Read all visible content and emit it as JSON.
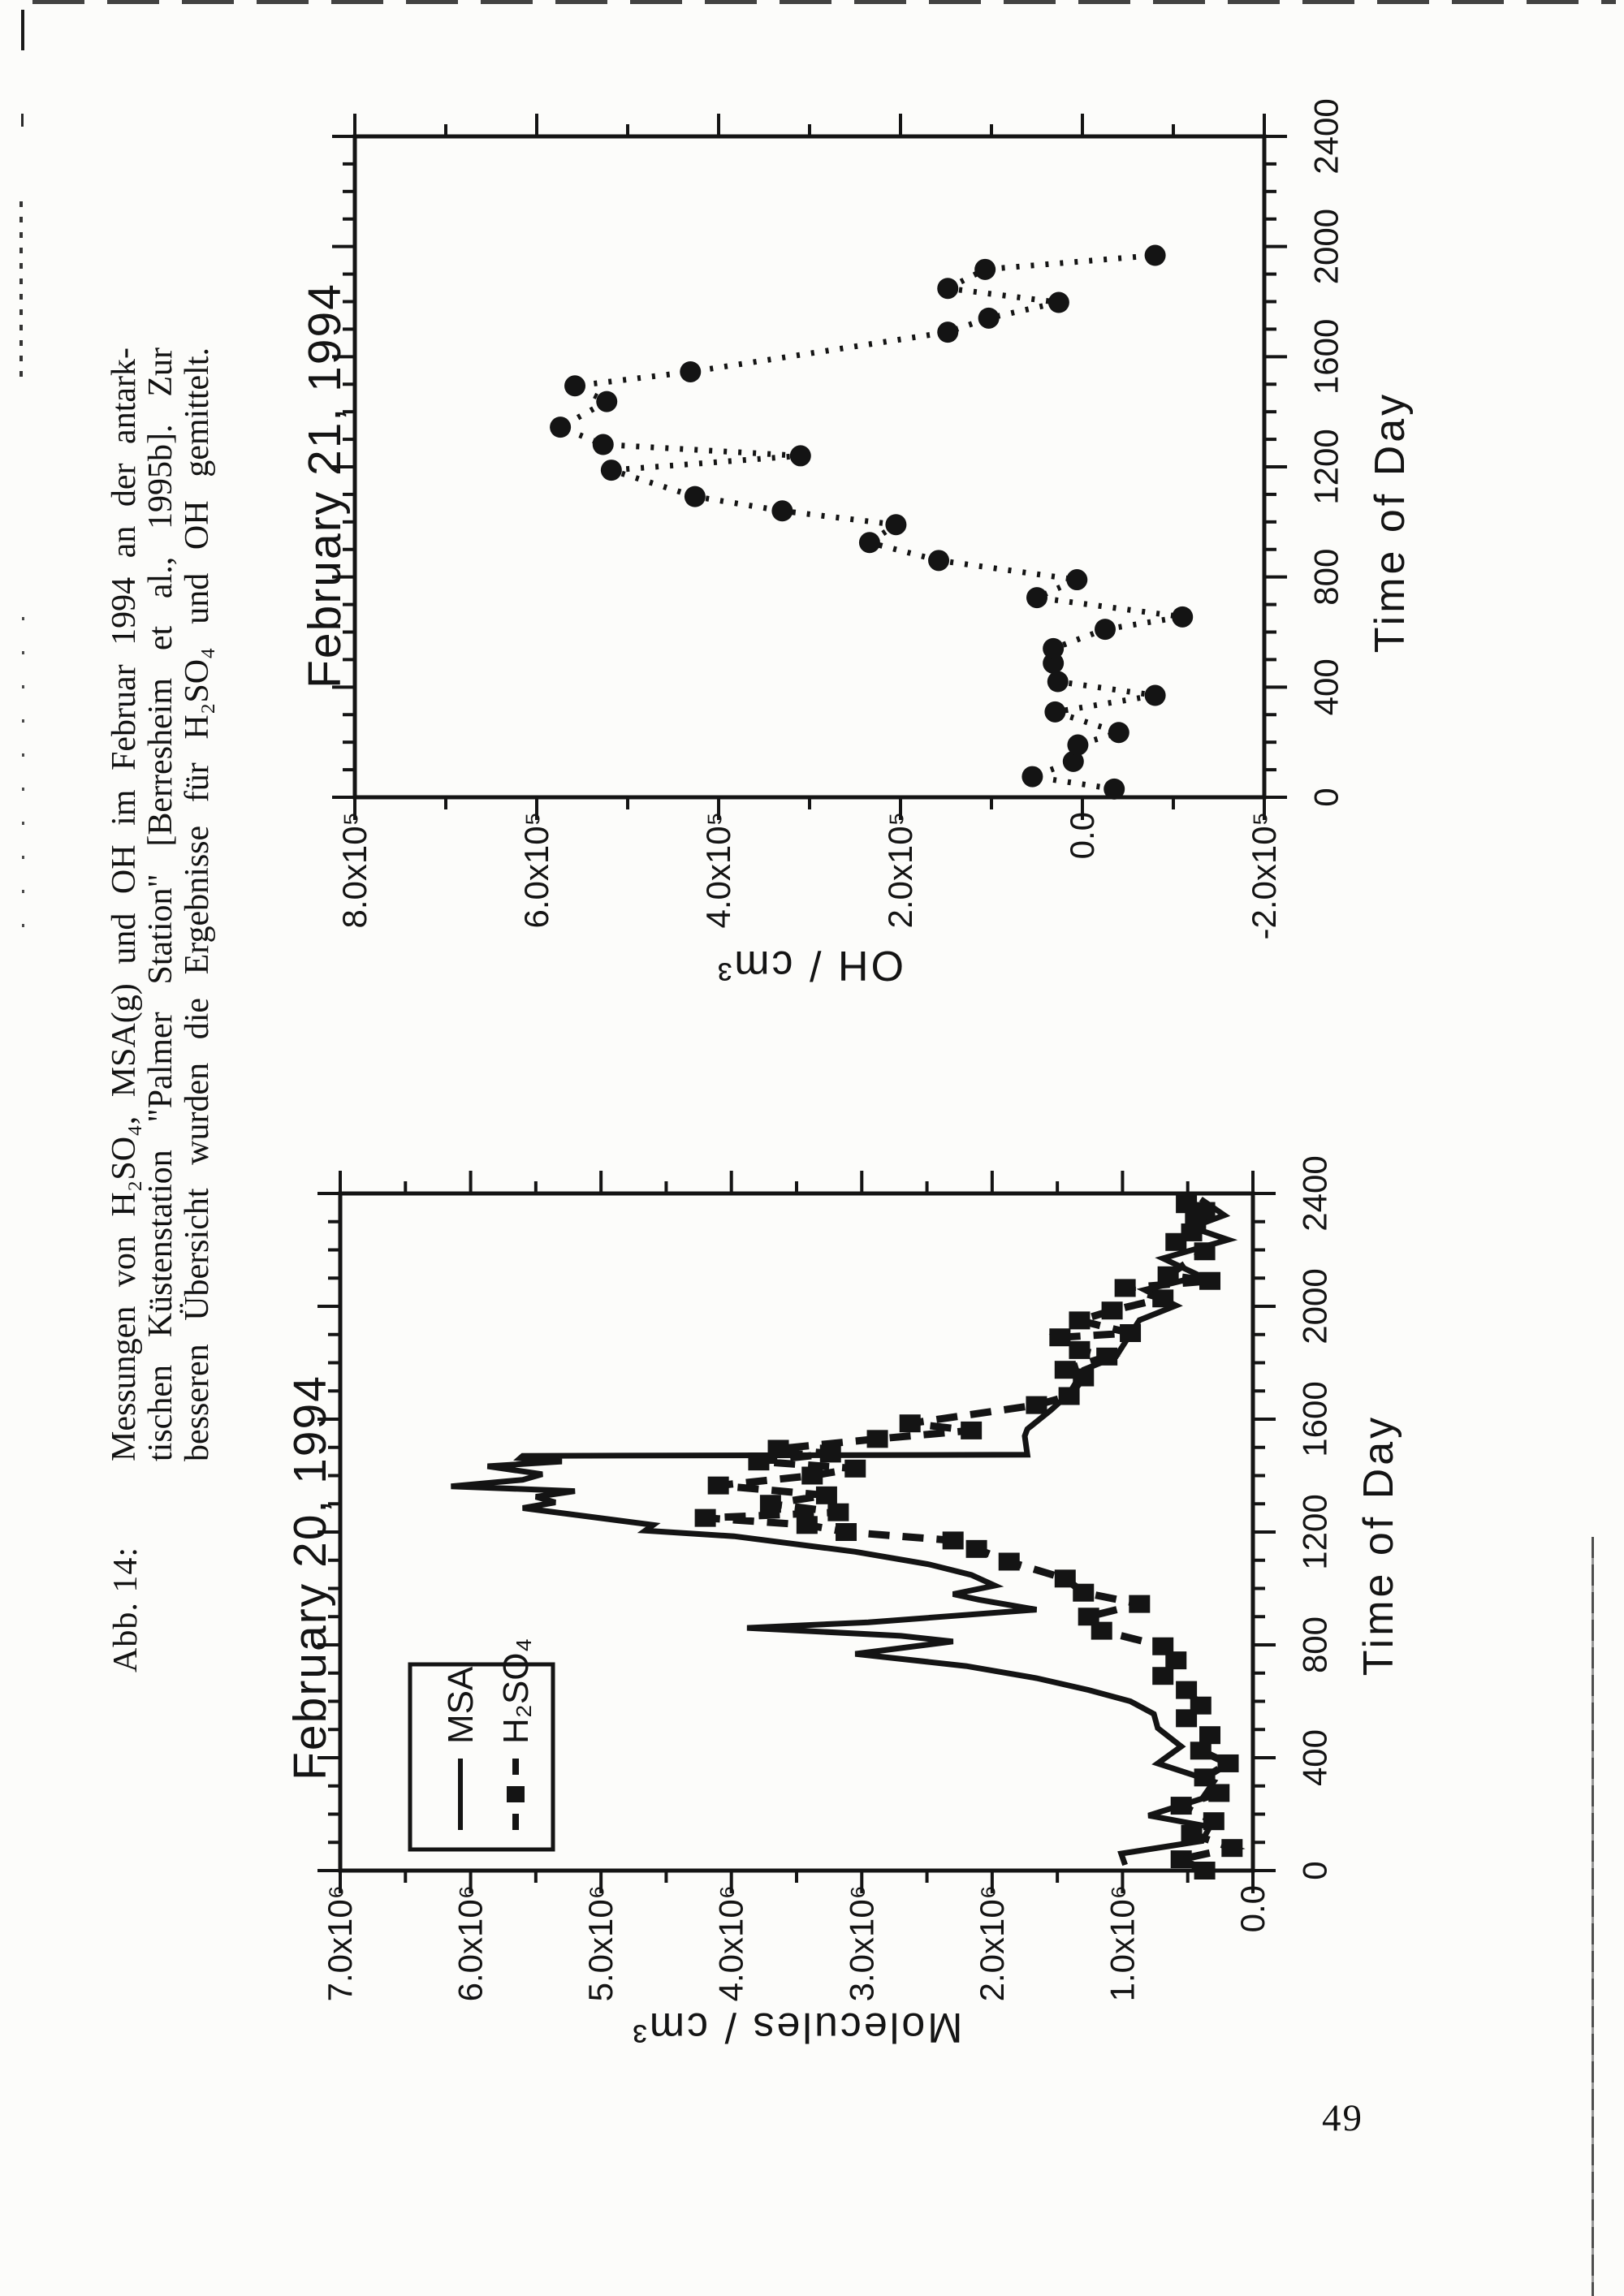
{
  "document": {
    "figure_label": "Abb. 14:",
    "caption": {
      "lines": [
        "Messungen von H₂SO₄, MSA(g) und OH im Februar 1994 an der antark-",
        "tischen Küstenstation \"Palmer Station\" [Berresheim et al., 1995b]. Zur",
        "besseren Übersicht wurden die Ergebnisse für H₂SO₄ und OH gemittelt."
      ]
    },
    "page_number": "49"
  },
  "chart_data": [
    {
      "type": "scatter",
      "title": "February 21, 1994",
      "xlabel": "Time of Day",
      "ylabel": "OH / cm³",
      "xlim": [
        0,
        2400
      ],
      "ylim": [
        -2,
        8
      ],
      "y_scale_note": "y values in 10⁵",
      "x_tick_values": [
        0,
        400,
        800,
        1200,
        1600,
        2000,
        2400
      ],
      "x_tick_labels": [
        "0",
        "400",
        "800",
        "1200",
        "1600",
        "2000",
        "2400"
      ],
      "y_tick_values": [
        8,
        6,
        4,
        2,
        0,
        -2
      ],
      "y_tick_labels": [
        "8.0x10⁵",
        "6.0x10⁵",
        "4.0x10⁵",
        "2.0x10⁵",
        "0.0",
        "-2.0x10⁵"
      ],
      "grid": false,
      "series": [
        {
          "name": "OH",
          "marker": "circle",
          "line": "dotted",
          "points": [
            [
              30,
              -0.35
            ],
            [
              75,
              0.55
            ],
            [
              130,
              0.1
            ],
            [
              190,
              0.05
            ],
            [
              235,
              -0.4
            ],
            [
              310,
              0.3
            ],
            [
              370,
              -0.8
            ],
            [
              420,
              0.27
            ],
            [
              487,
              0.32
            ],
            [
              540,
              0.32
            ],
            [
              610,
              -0.25
            ],
            [
              655,
              -1.1
            ],
            [
              725,
              0.5
            ],
            [
              790,
              0.06
            ],
            [
              860,
              1.58
            ],
            [
              925,
              2.34
            ],
            [
              990,
              2.05
            ],
            [
              1040,
              3.3
            ],
            [
              1092,
              4.26
            ],
            [
              1188,
              5.18
            ],
            [
              1240,
              3.1
            ],
            [
              1281,
              5.27
            ],
            [
              1344,
              5.74
            ],
            [
              1437,
              5.23
            ],
            [
              1494,
              5.58
            ],
            [
              1545,
              4.31
            ],
            [
              1689,
              1.48
            ],
            [
              1740,
              1.03
            ],
            [
              1797,
              0.26
            ],
            [
              1848,
              1.48
            ],
            [
              1917,
              1.07
            ],
            [
              1968,
              -0.8
            ]
          ]
        }
      ]
    },
    {
      "type": "line",
      "title": "February 20, 1994",
      "xlabel": "Time of Day",
      "ylabel": "Molecules / cm³",
      "xlim": [
        0,
        2400
      ],
      "ylim": [
        0,
        7
      ],
      "y_scale_note": "y values in 10⁶",
      "x_tick_values": [
        0,
        400,
        800,
        1200,
        1600,
        2000,
        2400
      ],
      "x_tick_labels": [
        "0",
        "400",
        "800",
        "1200",
        "1600",
        "2000",
        "2400"
      ],
      "y_tick_values": [
        7,
        6,
        5,
        4,
        3,
        2,
        1,
        0
      ],
      "y_tick_labels": [
        "7.0x10⁶",
        "6.0x10⁶",
        "5.0x10⁶",
        "4.0x10⁶",
        "3.0x10⁶",
        "2.0x10⁶",
        "1.0x10⁶",
        "0.0"
      ],
      "grid": false,
      "legend": {
        "position": "upper-left",
        "entries": [
          "MSA",
          "H₂SO₄"
        ]
      },
      "series": [
        {
          "name": "MSA",
          "marker": "none",
          "line": "solid",
          "points": [
            [
              20,
              0.98
            ],
            [
              60,
              1.01
            ],
            [
              105,
              0.39
            ],
            [
              155,
              0.33
            ],
            [
              195,
              0.8
            ],
            [
              255,
              0.39
            ],
            [
              315,
              0.3
            ],
            [
              380,
              0.73
            ],
            [
              440,
              0.55
            ],
            [
              505,
              0.73
            ],
            [
              555,
              0.76
            ],
            [
              600,
              0.94
            ],
            [
              640,
              1.26
            ],
            [
              682,
              1.66
            ],
            [
              725,
              2.2
            ],
            [
              768,
              3.05
            ],
            [
              812,
              2.3
            ],
            [
              832,
              2.7
            ],
            [
              860,
              3.88
            ],
            [
              880,
              2.95
            ],
            [
              925,
              1.66
            ],
            [
              960,
              2.1
            ],
            [
              980,
              2.3
            ],
            [
              1010,
              1.98
            ],
            [
              1048,
              2.16
            ],
            [
              1085,
              2.48
            ],
            [
              1130,
              3.05
            ],
            [
              1185,
              3.98
            ],
            [
              1205,
              4.66
            ],
            [
              1225,
              4.6
            ],
            [
              1255,
              5.1
            ],
            [
              1285,
              5.6
            ],
            [
              1305,
              5.35
            ],
            [
              1325,
              5.5
            ],
            [
              1345,
              5.2
            ],
            [
              1362,
              6.15
            ],
            [
              1385,
              5.6
            ],
            [
              1405,
              5.45
            ],
            [
              1433,
              5.87
            ],
            [
              1450,
              5.3
            ],
            [
              1462,
              5.62
            ],
            [
              1470,
              5.6
            ],
            [
              1474,
              1.73
            ],
            [
              1540,
              1.75
            ],
            [
              1565,
              1.73
            ],
            [
              1632,
              1.55
            ],
            [
              1690,
              1.41
            ],
            [
              1775,
              1.3
            ],
            [
              1822,
              1.05
            ],
            [
              1902,
              0.94
            ],
            [
              1951,
              0.87
            ],
            [
              2003,
              0.59
            ],
            [
              2058,
              0.83
            ],
            [
              2107,
              0.4
            ],
            [
              2170,
              0.69
            ],
            [
              2236,
              0.19
            ],
            [
              2280,
              0.47
            ],
            [
              2323,
              0.22
            ],
            [
              2380,
              0.4
            ]
          ]
        },
        {
          "name": "H₂SO₄",
          "marker": "square",
          "line": "dashed",
          "points": [
            [
              0,
              0.37
            ],
            [
              40,
              0.55
            ],
            [
              80,
              0.16
            ],
            [
              130,
              0.47
            ],
            [
              175,
              0.3
            ],
            [
              230,
              0.55
            ],
            [
              275,
              0.26
            ],
            [
              330,
              0.37
            ],
            [
              380,
              0.19
            ],
            [
              425,
              0.4
            ],
            [
              480,
              0.33
            ],
            [
              540,
              0.51
            ],
            [
              585,
              0.4
            ],
            [
              640,
              0.51
            ],
            [
              690,
              0.69
            ],
            [
              745,
              0.59
            ],
            [
              795,
              0.69
            ],
            [
              850,
              1.16
            ],
            [
              900,
              1.26
            ],
            [
              945,
              0.87
            ],
            [
              985,
              1.3
            ],
            [
              1035,
              1.44
            ],
            [
              1095,
              1.87
            ],
            [
              1140,
              2.12
            ],
            [
              1170,
              2.3
            ],
            [
              1200,
              3.12
            ],
            [
              1225,
              3.42
            ],
            [
              1250,
              4.2
            ],
            [
              1270,
              3.18
            ],
            [
              1300,
              3.7
            ],
            [
              1330,
              3.27
            ],
            [
              1365,
              4.1
            ],
            [
              1400,
              3.38
            ],
            [
              1425,
              3.05
            ],
            [
              1450,
              3.79
            ],
            [
              1478,
              3.24
            ],
            [
              1495,
              3.64
            ],
            [
              1530,
              2.88
            ],
            [
              1560,
              2.16
            ],
            [
              1585,
              2.63
            ],
            [
              1650,
              1.66
            ],
            [
              1682,
              1.41
            ],
            [
              1748,
              1.3
            ],
            [
              1775,
              1.44
            ],
            [
              1822,
              1.12
            ],
            [
              1845,
              1.33
            ],
            [
              1890,
              1.48
            ],
            [
              1905,
              0.94
            ],
            [
              1950,
              1.33
            ],
            [
              1985,
              1.08
            ],
            [
              2028,
              0.69
            ],
            [
              2065,
              0.98
            ],
            [
              2090,
              0.33
            ],
            [
              2110,
              0.65
            ],
            [
              2195,
              0.37
            ],
            [
              2228,
              0.59
            ],
            [
              2262,
              0.47
            ],
            [
              2305,
              0.44
            ],
            [
              2338,
              0.37
            ],
            [
              2362,
              0.51
            ]
          ]
        }
      ]
    }
  ]
}
